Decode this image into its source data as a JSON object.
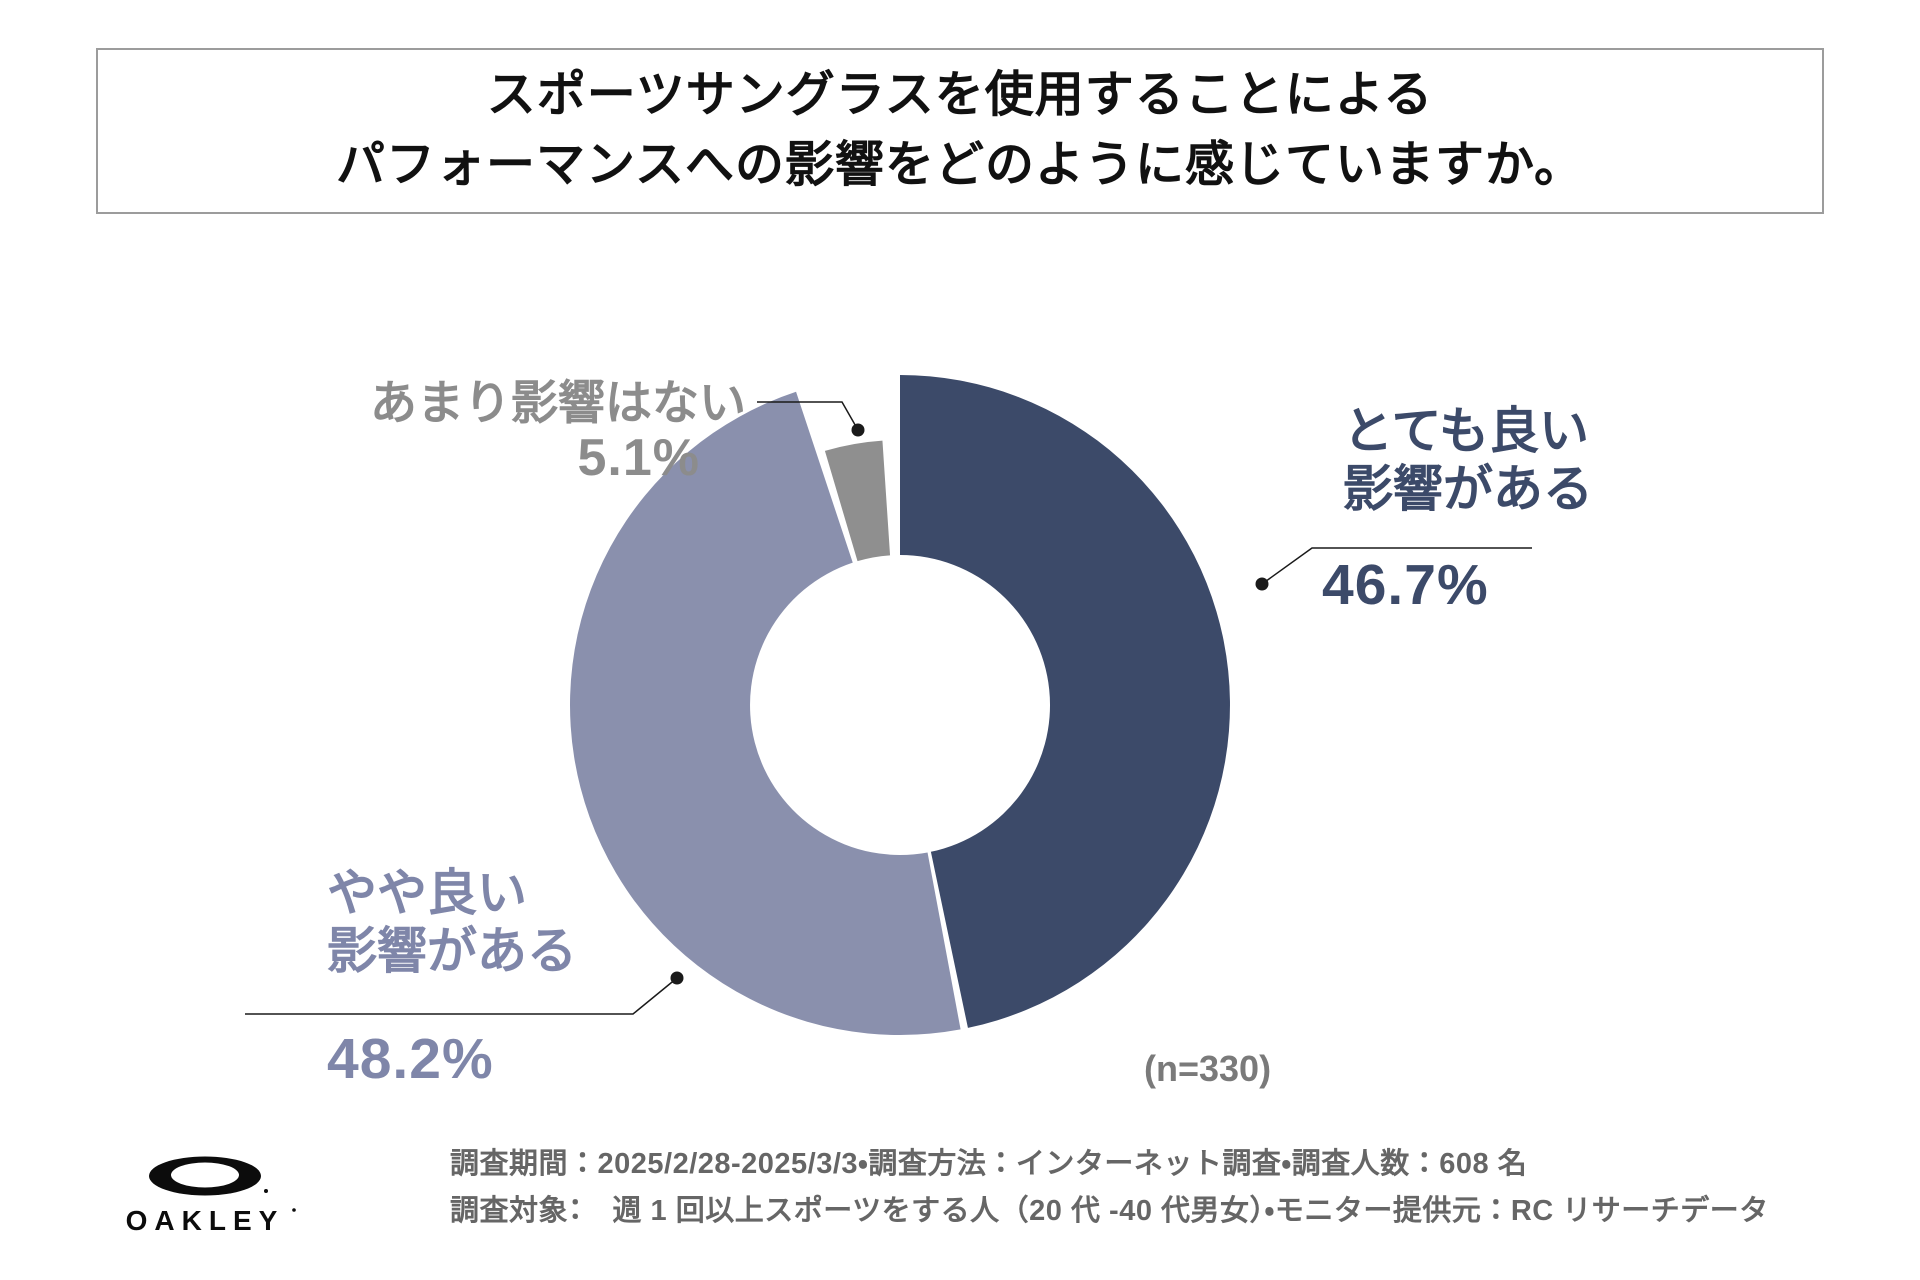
{
  "title": {
    "line1": "スポーツサングラスを使用することによる",
    "line2": "パフォーマンスへの影響をどのように感じていますか。"
  },
  "chart_data": {
    "type": "pie",
    "donut": true,
    "title": "スポーツサングラスを使用することによるパフォーマンスへの影響をどのように感じていますか。",
    "categories": [
      "とても良い影響がある",
      "やや良い影響がある",
      "あまり影響はない"
    ],
    "values": [
      46.7,
      48.2,
      5.1
    ],
    "unit": "%",
    "colors": [
      "#3C4A69",
      "#8A90AD",
      "#8F8F8F"
    ],
    "start_angle_deg": 0,
    "direction": "clockwise",
    "hole_ratio": 0.45,
    "sample_size_label": "(n=330)",
    "legend_position": "none"
  },
  "callouts": {
    "very_good": {
      "line1": "とても良い",
      "line2": "影響がある",
      "pct": "46.7%"
    },
    "somewhat_good": {
      "line1": "やや良い",
      "line2": "影響がある",
      "pct": "48.2%"
    },
    "no_effect": {
      "label": "あまり影響はない",
      "pct": "5.1%"
    }
  },
  "sample": {
    "n_label": "(n=330)"
  },
  "footer": {
    "line1": "調査期間：2025/2/28-2025/3/3・調査方法：インターネット調査・調査人数：608 名",
    "line2": "調査対象：　週 1 回以上スポーツをする人（20 代 -40 代男女）・モニター提供元：RC リサーチデータ",
    "brand": "OAKLEY"
  },
  "style": {
    "navy": "#3C4A69",
    "purple": "#8A90AD",
    "slice_gray": "#8F8F8F",
    "text_gray": "#8C8C8C",
    "footer_gray": "#666666",
    "n_gray": "#7A7A7A",
    "leader_black": "#1A1A1A",
    "title_border_gray": "#9C9C9C"
  }
}
